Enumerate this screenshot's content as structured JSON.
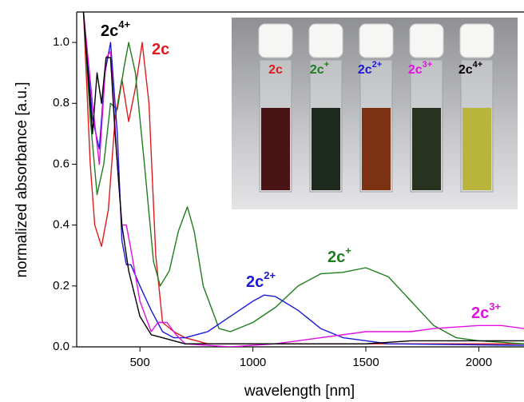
{
  "chart_data": {
    "type": "line",
    "xlabel": "wavelength [nm]",
    "ylabel": "normalized absorbance [a.u.]",
    "xlim": [
      220,
      2200
    ],
    "ylim": [
      0,
      1.1
    ],
    "xticks": [
      500,
      1000,
      1500,
      2000
    ],
    "yticks": [
      {
        "value": 0,
        "label": "0.0"
      },
      {
        "value": 0.2,
        "label": "0.2"
      },
      {
        "value": 0.4,
        "label": "0.4"
      },
      {
        "value": 0.6,
        "label": "0.6"
      },
      {
        "value": 0.8,
        "label": "0.8"
      },
      {
        "value": 1,
        "label": "1.0"
      }
    ],
    "series": [
      {
        "base": "2c",
        "color": "#e0191b",
        "x": [
          250,
          280,
          300,
          330,
          360,
          390,
          420,
          450,
          480,
          510,
          540,
          570,
          600,
          650,
          700,
          800,
          1000,
          1500,
          2000,
          2200
        ],
        "values": [
          1.1,
          0.6,
          0.4,
          0.33,
          0.45,
          0.75,
          0.88,
          0.74,
          0.85,
          1.0,
          0.8,
          0.3,
          0.08,
          0.05,
          0.03,
          0.01,
          0.01,
          0.01,
          0.01,
          0.01
        ]
      },
      {
        "base": "2c",
        "sup": "+",
        "color": "#1e7d1e",
        "x": [
          250,
          280,
          310,
          340,
          370,
          400,
          430,
          450,
          480,
          520,
          560,
          590,
          630,
          670,
          710,
          740,
          780,
          850,
          900,
          1000,
          1100,
          1200,
          1300,
          1400,
          1500,
          1600,
          1700,
          1800,
          1900,
          2000,
          2200
        ],
        "values": [
          1.1,
          0.75,
          0.5,
          0.6,
          0.8,
          0.78,
          0.92,
          1.0,
          0.9,
          0.6,
          0.28,
          0.2,
          0.25,
          0.38,
          0.46,
          0.38,
          0.2,
          0.06,
          0.05,
          0.08,
          0.13,
          0.2,
          0.24,
          0.245,
          0.26,
          0.23,
          0.15,
          0.07,
          0.03,
          0.02,
          0.01
        ]
      },
      {
        "base": "2c",
        "sup": "2+",
        "color": "#1a1ad6",
        "x": [
          250,
          290,
          320,
          345,
          370,
          400,
          420,
          440,
          460,
          500,
          550,
          600,
          650,
          700,
          800,
          900,
          1000,
          1050,
          1100,
          1200,
          1300,
          1400,
          1600,
          2200
        ],
        "values": [
          1.1,
          0.75,
          0.65,
          0.9,
          1.0,
          0.7,
          0.35,
          0.27,
          0.27,
          0.2,
          0.12,
          0.05,
          0.03,
          0.03,
          0.05,
          0.1,
          0.15,
          0.17,
          0.165,
          0.12,
          0.06,
          0.03,
          0.01,
          0.005
        ]
      },
      {
        "base": "2c",
        "sup": "3+",
        "color": "#e010e0",
        "x": [
          250,
          290,
          320,
          350,
          370,
          400,
          420,
          440,
          460,
          500,
          550,
          580,
          620,
          660,
          700,
          900,
          1100,
          1300,
          1500,
          1700,
          1800,
          2000,
          2100,
          2200
        ],
        "values": [
          1.1,
          0.8,
          0.6,
          0.95,
          0.97,
          0.6,
          0.4,
          0.4,
          0.32,
          0.15,
          0.05,
          0.08,
          0.08,
          0.04,
          0.01,
          0.0,
          0.01,
          0.03,
          0.05,
          0.05,
          0.06,
          0.07,
          0.07,
          0.06
        ]
      },
      {
        "base": "2c",
        "sup": "4+",
        "color": "#000000",
        "x": [
          250,
          290,
          310,
          330,
          350,
          370,
          390,
          420,
          450,
          500,
          550,
          600,
          650,
          700,
          1000,
          1500,
          1700,
          2200
        ],
        "values": [
          1.1,
          0.7,
          0.9,
          0.8,
          0.95,
          0.95,
          0.7,
          0.4,
          0.25,
          0.1,
          0.04,
          0.03,
          0.02,
          0.01,
          0.01,
          0.01,
          0.02,
          0.02
        ]
      }
    ]
  },
  "inset": {
    "cuvettes": [
      {
        "base": "2c",
        "color": "#e0191b"
      },
      {
        "base": "2c",
        "sup": "+",
        "color": "#1e7d1e"
      },
      {
        "base": "2c",
        "sup": "2+",
        "color": "#1a1ad6"
      },
      {
        "base": "2c",
        "sup": "3+",
        "color": "#e010e0"
      },
      {
        "base": "2c",
        "sup": "4+",
        "color": "#000000"
      }
    ]
  }
}
